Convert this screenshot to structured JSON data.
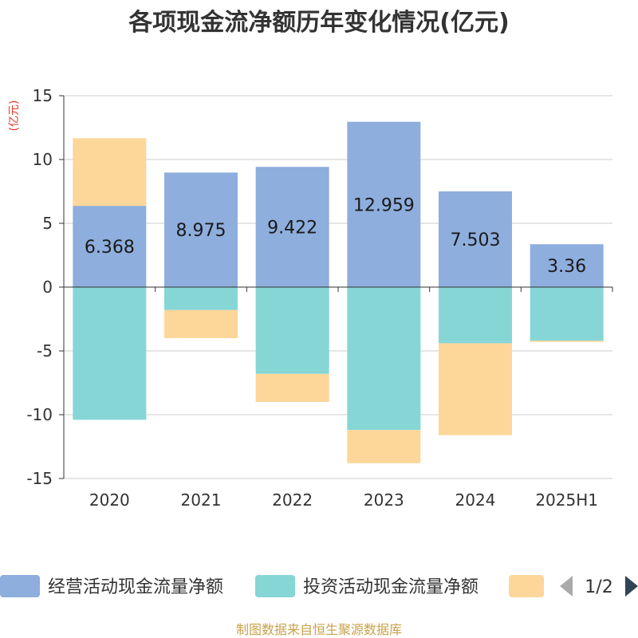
{
  "chart_data": {
    "type": "bar",
    "stacked": true,
    "title": "各项现金流净额历年变化情况(亿元)",
    "ylabel": "(亿元)",
    "ylim": [
      -15,
      15
    ],
    "yticks": [
      15,
      10,
      5,
      0,
      -5,
      -10,
      -15
    ],
    "categories": [
      "2020",
      "2021",
      "2022",
      "2023",
      "2024",
      "2025H1"
    ],
    "series": [
      {
        "name": "经营活动现金流量净额",
        "color": "#8eaedd",
        "values": [
          6.368,
          8.975,
          9.422,
          12.959,
          7.503,
          3.36
        ],
        "labels": [
          "6.368",
          "8.975",
          "9.422",
          "12.959",
          "7.503",
          "3.36"
        ]
      },
      {
        "name": "投资活动现金流量净额",
        "color": "#86d6d6",
        "values": [
          -10.4,
          -1.8,
          -6.8,
          -11.2,
          -4.4,
          -4.2
        ]
      },
      {
        "name": "",
        "color": "#fdd699",
        "values": [
          5.3,
          -2.2,
          -2.2,
          -2.6,
          -7.2,
          -0.1
        ]
      }
    ],
    "grid": true,
    "legend_position": "bottom"
  },
  "legend": {
    "pager": "1/2"
  },
  "source": "制图数据来自恒生聚源数据库"
}
